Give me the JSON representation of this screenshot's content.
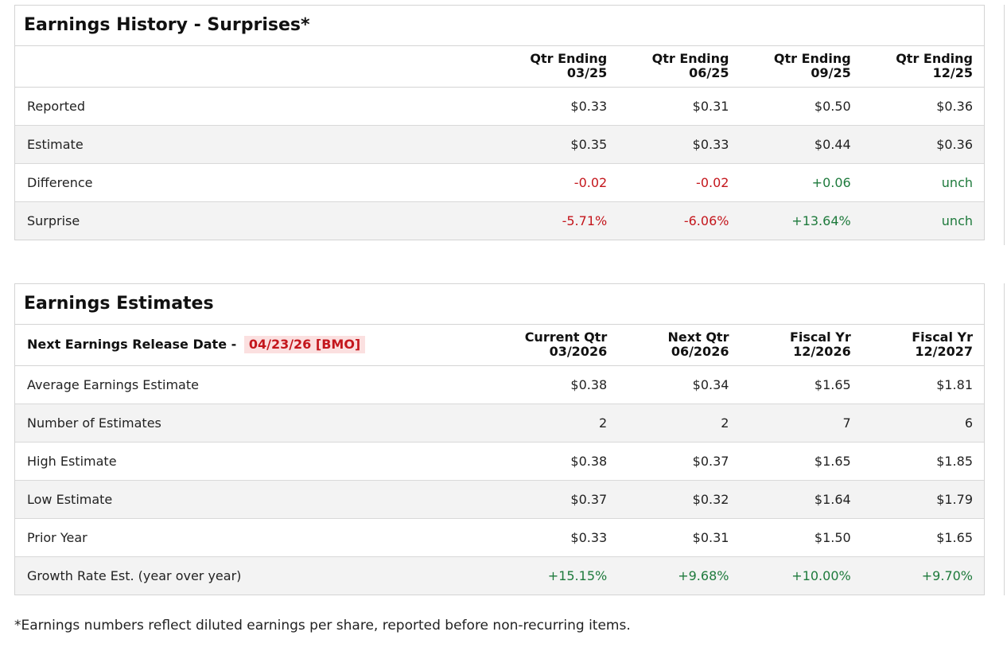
{
  "history": {
    "title": "Earnings History - Surprises*",
    "columns": [
      {
        "line1": "Qtr Ending",
        "line2": "03/25"
      },
      {
        "line1": "Qtr Ending",
        "line2": "06/25"
      },
      {
        "line1": "Qtr Ending",
        "line2": "09/25"
      },
      {
        "line1": "Qtr Ending",
        "line2": "12/25"
      }
    ],
    "rows": [
      {
        "label": "Reported",
        "values": [
          "$0.33",
          "$0.31",
          "$0.50",
          "$0.36"
        ]
      },
      {
        "label": "Estimate",
        "values": [
          "$0.35",
          "$0.33",
          "$0.44",
          "$0.36"
        ]
      },
      {
        "label": "Difference",
        "values": [
          "-0.02",
          "-0.02",
          "+0.06",
          "unch"
        ]
      },
      {
        "label": "Surprise",
        "values": [
          "-5.71%",
          "-6.06%",
          "+13.64%",
          "unch"
        ]
      }
    ]
  },
  "estimates": {
    "title": "Earnings Estimates",
    "release_label": "Next Earnings Release Date -",
    "release_date": "04/23/26 [BMO]",
    "columns": [
      {
        "line1": "Current Qtr",
        "line2": "03/2026"
      },
      {
        "line1": "Next Qtr",
        "line2": "06/2026"
      },
      {
        "line1": "Fiscal Yr",
        "line2": "12/2026"
      },
      {
        "line1": "Fiscal Yr",
        "line2": "12/2027"
      }
    ],
    "rows": [
      {
        "label": "Average Earnings Estimate",
        "values": [
          "$0.38",
          "$0.34",
          "$1.65",
          "$1.81"
        ]
      },
      {
        "label": "Number of Estimates",
        "values": [
          "2",
          "2",
          "7",
          "6"
        ]
      },
      {
        "label": "High Estimate",
        "values": [
          "$0.38",
          "$0.37",
          "$1.65",
          "$1.85"
        ]
      },
      {
        "label": "Low Estimate",
        "values": [
          "$0.37",
          "$0.32",
          "$1.64",
          "$1.79"
        ]
      },
      {
        "label": "Prior Year",
        "values": [
          "$0.33",
          "$0.31",
          "$1.50",
          "$1.65"
        ]
      },
      {
        "label": "Growth Rate Est. (year over year)",
        "values": [
          "+15.15%",
          "+9.68%",
          "+10.00%",
          "+9.70%"
        ]
      }
    ]
  },
  "footnote": "*Earnings numbers reflect diluted earnings per share, reported before non-recurring items.",
  "colors": {
    "negative": "#c4161c",
    "positive": "#1e7a3c",
    "release_bg": "#fbe0e0"
  }
}
